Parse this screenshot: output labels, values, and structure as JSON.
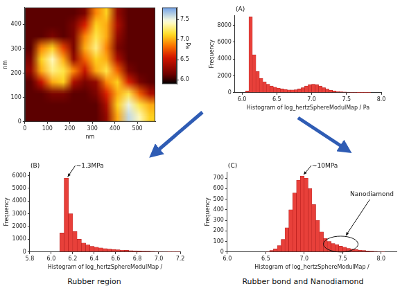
{
  "chart_data": [
    {
      "type": "heatmap",
      "x_label": "nm",
      "y_label": "nm",
      "xlim": [
        0,
        580
      ],
      "ylim": [
        0,
        470
      ],
      "xticks": [
        0,
        100,
        200,
        300,
        400,
        500
      ],
      "yticks": [
        0,
        100,
        200,
        300,
        400
      ],
      "cells": [
        [
          6.1,
          6.1,
          6.1,
          6.1,
          6.1,
          6.2,
          6.9,
          7.1,
          6.3,
          6.1,
          6.1,
          6.1
        ],
        [
          6.1,
          6.1,
          6.1,
          6.1,
          6.2,
          6.6,
          7.1,
          7.0,
          6.4,
          6.1,
          6.1,
          6.1
        ],
        [
          6.1,
          6.1,
          6.2,
          6.1,
          6.2,
          6.9,
          7.2,
          7.0,
          6.3,
          6.1,
          6.1,
          6.1
        ],
        [
          6.1,
          6.9,
          7.1,
          6.7,
          6.2,
          7.0,
          7.3,
          6.9,
          6.2,
          6.1,
          6.1,
          6.1
        ],
        [
          6.2,
          7.1,
          7.4,
          7.0,
          6.3,
          6.8,
          7.1,
          7.0,
          6.4,
          6.1,
          6.1,
          6.1
        ],
        [
          6.3,
          7.0,
          7.3,
          7.2,
          6.9,
          6.5,
          7.0,
          7.2,
          6.8,
          6.2,
          6.1,
          6.1
        ],
        [
          6.1,
          6.5,
          7.0,
          7.1,
          6.4,
          6.2,
          6.3,
          6.9,
          7.1,
          6.6,
          6.2,
          6.1
        ],
        [
          6.1,
          6.1,
          6.2,
          6.2,
          6.1,
          6.1,
          6.2,
          6.6,
          7.0,
          7.2,
          6.8,
          6.4
        ],
        [
          6.1,
          6.1,
          6.1,
          6.1,
          6.1,
          6.1,
          6.1,
          6.4,
          7.1,
          7.5,
          7.2,
          7.0
        ],
        [
          6.1,
          6.1,
          6.1,
          6.1,
          6.1,
          6.1,
          6.1,
          6.3,
          7.0,
          7.6,
          7.4,
          7.1
        ]
      ],
      "colorbar": {
        "label": "Pa",
        "range": [
          5.9,
          7.8
        ],
        "ticks": [
          {
            "value": 6,
            "label": "6.0"
          },
          6.5,
          {
            "value": 7,
            "label": "7.0"
          },
          7.5
        ]
      }
    },
    {
      "type": "histogram",
      "panel_label": "(A)",
      "x_label": "Histogram of log_hertzSphereModulMap / Pa",
      "y_label": "Frequency",
      "color": "#e8403a",
      "bins": [
        5.9,
        5.95,
        6.0,
        6.05,
        6.1,
        6.15,
        6.2,
        6.25,
        6.3,
        6.35,
        6.4,
        6.45,
        6.5,
        6.55,
        6.6,
        6.65,
        6.7,
        6.75,
        6.8,
        6.85,
        6.9,
        6.95,
        7.0,
        7.05,
        7.1,
        7.15,
        7.2,
        7.25,
        7.3,
        7.35,
        7.4,
        7.45,
        7.5,
        7.55,
        7.6,
        7.65,
        7.7,
        7.75,
        7.8,
        7.85,
        7.9,
        7.95,
        8.0
      ],
      "counts": [
        0,
        0,
        0,
        200,
        9000,
        4500,
        2500,
        1700,
        1300,
        1000,
        800,
        650,
        550,
        450,
        380,
        330,
        320,
        350,
        450,
        600,
        800,
        950,
        1000,
        950,
        800,
        600,
        420,
        300,
        200,
        150,
        110,
        80,
        60,
        40,
        30,
        20,
        15,
        10,
        5,
        0,
        0,
        0
      ],
      "xlim": [
        5.9,
        8.0
      ],
      "xticks": [
        {
          "value": 6,
          "label": "6.0"
        },
        6.5,
        {
          "value": 7,
          "label": "7.0"
        },
        7.5,
        {
          "value": 8,
          "label": "8.0"
        }
      ],
      "ylim": [
        0,
        9200
      ],
      "yticks": [
        0,
        2000,
        4000,
        6000,
        8000
      ],
      "annotations": []
    },
    {
      "type": "histogram",
      "panel_label": "(B)",
      "x_label": "Histogram of log_hertzSphereModulMap /",
      "y_label": "Frequency",
      "color": "#e8403a",
      "bins": [
        5.8,
        5.84,
        5.88,
        5.92,
        5.96,
        6.0,
        6.04,
        6.08,
        6.12,
        6.16,
        6.2,
        6.24,
        6.28,
        6.32,
        6.36,
        6.4,
        6.44,
        6.48,
        6.52,
        6.56,
        6.6,
        6.64,
        6.68,
        6.72,
        6.76,
        6.8,
        6.84,
        6.88,
        6.92,
        6.96,
        7.0,
        7.04,
        7.08,
        7.12,
        7.16,
        7.2
      ],
      "counts": [
        0,
        0,
        0,
        0,
        0,
        0,
        0,
        1500,
        5800,
        3000,
        1600,
        1000,
        700,
        550,
        450,
        380,
        320,
        270,
        230,
        200,
        170,
        150,
        130,
        110,
        95,
        80,
        70,
        60,
        50,
        40,
        35,
        30,
        25,
        20,
        15
      ],
      "xlim": [
        5.8,
        7.2
      ],
      "xticks": [
        5.8,
        {
          "value": 6,
          "label": "6.0"
        },
        6.2,
        6.4,
        6.6,
        6.8,
        {
          "value": 7,
          "label": "7.0"
        },
        7.2
      ],
      "ylim": [
        0,
        6300
      ],
      "yticks": [
        0,
        1000,
        2000,
        3000,
        4000,
        5000,
        6000
      ],
      "annotations": [
        {
          "text": "~1.3MPa",
          "x": 6.14,
          "y": 5800
        }
      ],
      "caption": "Rubber region"
    },
    {
      "type": "histogram",
      "panel_label": "(C)",
      "x_label": "Histogram of log_hertzSphereModulMap /",
      "y_label": "Frequency",
      "color": "#e8403a",
      "bins": [
        6.0,
        6.05,
        6.1,
        6.15,
        6.2,
        6.25,
        6.3,
        6.35,
        6.4,
        6.45,
        6.5,
        6.55,
        6.6,
        6.65,
        6.7,
        6.75,
        6.8,
        6.85,
        6.9,
        6.95,
        7.0,
        7.05,
        7.1,
        7.15,
        7.2,
        7.25,
        7.3,
        7.35,
        7.4,
        7.45,
        7.5,
        7.55,
        7.6,
        7.65,
        7.7,
        7.75,
        7.8,
        7.85,
        7.9,
        7.95,
        8.0,
        8.05,
        8.1,
        8.15,
        8.2
      ],
      "counts": [
        0,
        0,
        0,
        0,
        0,
        0,
        0,
        0,
        0,
        0,
        5,
        15,
        30,
        60,
        120,
        230,
        400,
        560,
        680,
        720,
        700,
        600,
        450,
        300,
        190,
        130,
        100,
        80,
        70,
        55,
        45,
        35,
        28,
        22,
        18,
        14,
        10,
        8,
        6,
        4,
        2,
        0,
        0,
        0
      ],
      "xlim": [
        6.0,
        8.2
      ],
      "xticks": [
        {
          "value": 6,
          "label": "6.0"
        },
        6.5,
        {
          "value": 7,
          "label": "7.0"
        },
        7.5,
        {
          "value": 8,
          "label": "8.0"
        }
      ],
      "ylim": [
        0,
        760
      ],
      "yticks": [
        0,
        100,
        200,
        300,
        400,
        500,
        600,
        700
      ],
      "annotations": [
        {
          "text": "~10MPa",
          "x": 6.975,
          "y": 720
        },
        {
          "text": "Nanodiamond",
          "x_range": [
            7.25,
            7.7
          ],
          "y_range": [
            0,
            150
          ]
        }
      ],
      "caption": "Rubber bond and Nanodiamond"
    }
  ]
}
